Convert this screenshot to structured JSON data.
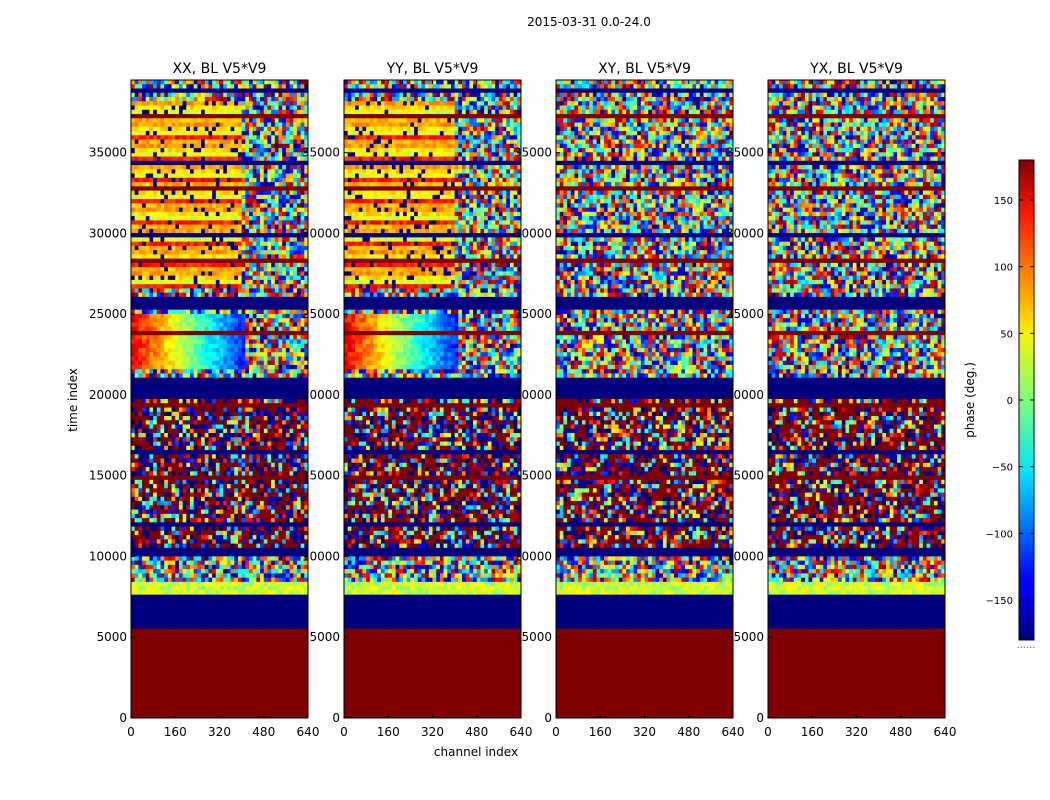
{
  "figure": {
    "title": "2015-03-31 0.0-24.0"
  },
  "chart_data": {
    "type": "heatmap",
    "title": "2015-03-31 0.0-24.0",
    "xlabel": "channel index",
    "ylabel": "time index",
    "xlim": [
      0,
      640
    ],
    "ylim": [
      0,
      39500
    ],
    "xticks": [
      0,
      160,
      320,
      480,
      640
    ],
    "yticks": [
      0,
      5000,
      10000,
      15000,
      20000,
      25000,
      30000,
      35000
    ],
    "panels": [
      {
        "title": "XX, BL V5*V9",
        "key": "xx"
      },
      {
        "title": "YY, BL V5*V9",
        "key": "yy"
      },
      {
        "title": "XY, BL V5*V9",
        "key": "xy"
      },
      {
        "title": "YX, BL V5*V9",
        "key": "yx"
      }
    ],
    "colorbar": {
      "label": "phase (deg.)",
      "range": [
        -180,
        180
      ],
      "ticks": [
        -150,
        -100,
        -50,
        0,
        50,
        100,
        150
      ],
      "colormap": "jet",
      "extra_label": "......"
    },
    "colors": {
      "low": "#00007f",
      "high": "#7f0000"
    }
  }
}
